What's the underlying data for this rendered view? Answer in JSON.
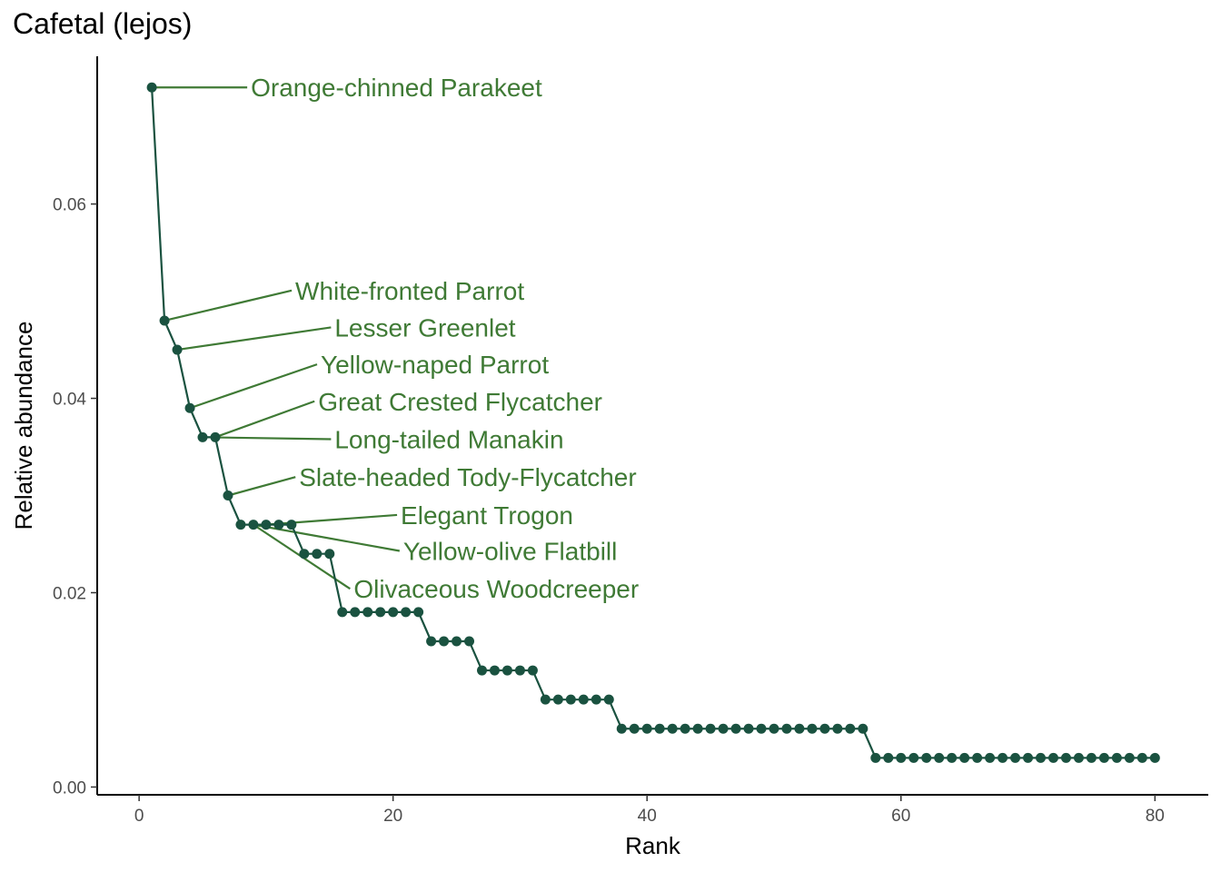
{
  "chart_data": {
    "type": "line",
    "title": "Cafetal (lejos)",
    "xlabel": "Rank",
    "ylabel": "Relative abundance",
    "xlim": [
      -3.3,
      84.2
    ],
    "ylim": [
      -0.0008,
      0.0752
    ],
    "x_ticks": [
      0,
      20,
      40,
      60,
      80
    ],
    "x_tick_labels": [
      "0",
      "20",
      "40",
      "60",
      "80"
    ],
    "y_ticks": [
      0,
      0.02,
      0.04,
      0.06
    ],
    "y_tick_labels": [
      "0.00",
      "0.02",
      "0.04",
      "0.06"
    ],
    "grid": false,
    "line_color": "#1a5240",
    "label_color": "#3f7a35",
    "series": [
      {
        "points": [
          [
            1,
            0.072
          ],
          [
            2,
            0.048
          ],
          [
            3,
            0.045
          ],
          [
            4,
            0.039
          ],
          [
            5,
            0.036
          ],
          [
            6,
            0.036
          ],
          [
            7,
            0.03
          ],
          [
            8,
            0.027
          ],
          [
            9,
            0.027
          ],
          [
            10,
            0.027
          ],
          [
            11,
            0.027
          ],
          [
            12,
            0.027
          ],
          [
            13,
            0.024
          ],
          [
            14,
            0.024
          ],
          [
            15,
            0.024
          ],
          [
            16,
            0.018
          ],
          [
            17,
            0.018
          ],
          [
            18,
            0.018
          ],
          [
            19,
            0.018
          ],
          [
            20,
            0.018
          ],
          [
            21,
            0.018
          ],
          [
            22,
            0.018
          ],
          [
            23,
            0.015
          ],
          [
            24,
            0.015
          ],
          [
            25,
            0.015
          ],
          [
            26,
            0.015
          ],
          [
            27,
            0.012
          ],
          [
            28,
            0.012
          ],
          [
            29,
            0.012
          ],
          [
            30,
            0.012
          ],
          [
            31,
            0.012
          ],
          [
            32,
            0.009
          ],
          [
            33,
            0.009
          ],
          [
            34,
            0.009
          ],
          [
            35,
            0.009
          ],
          [
            36,
            0.009
          ],
          [
            37,
            0.009
          ],
          [
            38,
            0.006
          ],
          [
            39,
            0.006
          ],
          [
            40,
            0.006
          ],
          [
            41,
            0.006
          ],
          [
            42,
            0.006
          ],
          [
            43,
            0.006
          ],
          [
            44,
            0.006
          ],
          [
            45,
            0.006
          ],
          [
            46,
            0.006
          ],
          [
            47,
            0.006
          ],
          [
            48,
            0.006
          ],
          [
            49,
            0.006
          ],
          [
            50,
            0.006
          ],
          [
            51,
            0.006
          ],
          [
            52,
            0.006
          ],
          [
            53,
            0.006
          ],
          [
            54,
            0.006
          ],
          [
            55,
            0.006
          ],
          [
            56,
            0.006
          ],
          [
            57,
            0.006
          ],
          [
            58,
            0.003
          ],
          [
            59,
            0.003
          ],
          [
            60,
            0.003
          ],
          [
            61,
            0.003
          ],
          [
            62,
            0.003
          ],
          [
            63,
            0.003
          ],
          [
            64,
            0.003
          ],
          [
            65,
            0.003
          ],
          [
            66,
            0.003
          ],
          [
            67,
            0.003
          ],
          [
            68,
            0.003
          ],
          [
            69,
            0.003
          ],
          [
            70,
            0.003
          ],
          [
            71,
            0.003
          ],
          [
            72,
            0.003
          ],
          [
            73,
            0.003
          ],
          [
            74,
            0.003
          ],
          [
            75,
            0.003
          ],
          [
            76,
            0.003
          ],
          [
            77,
            0.003
          ],
          [
            78,
            0.003
          ],
          [
            79,
            0.003
          ],
          [
            80,
            0.003
          ]
        ]
      }
    ],
    "annotations": [
      {
        "text": "Orange-chinned Parakeet",
        "rank": 1,
        "value": 0.072,
        "label_x": 8.8,
        "label_y": 0.072
      },
      {
        "text": "White-fronted Parrot",
        "rank": 2,
        "value": 0.048,
        "label_x": 12.3,
        "label_y": 0.0511
      },
      {
        "text": "Lesser Greenlet",
        "rank": 3,
        "value": 0.045,
        "label_x": 15.4,
        "label_y": 0.0473
      },
      {
        "text": "Yellow-naped Parrot",
        "rank": 4,
        "value": 0.039,
        "label_x": 14.3,
        "label_y": 0.0435
      },
      {
        "text": "Great Crested Flycatcher",
        "rank": 6,
        "value": 0.036,
        "label_x": 14.1,
        "label_y": 0.0397
      },
      {
        "text": "Long-tailed Manakin",
        "rank": 5,
        "value": 0.036,
        "label_x": 15.4,
        "label_y": 0.0358
      },
      {
        "text": "Slate-headed Tody-Flycatcher",
        "rank": 7,
        "value": 0.03,
        "label_x": 12.6,
        "label_y": 0.0319
      },
      {
        "text": "Elegant Trogon",
        "rank": 10,
        "value": 0.027,
        "label_x": 20.6,
        "label_y": 0.028
      },
      {
        "text": "Yellow-olive Flatbill",
        "rank": 9,
        "value": 0.027,
        "label_x": 20.8,
        "label_y": 0.0243
      },
      {
        "text": "Olivaceous Woodcreeper",
        "rank": 9,
        "value": 0.027,
        "label_x": 16.9,
        "label_y": 0.0204
      }
    ]
  }
}
